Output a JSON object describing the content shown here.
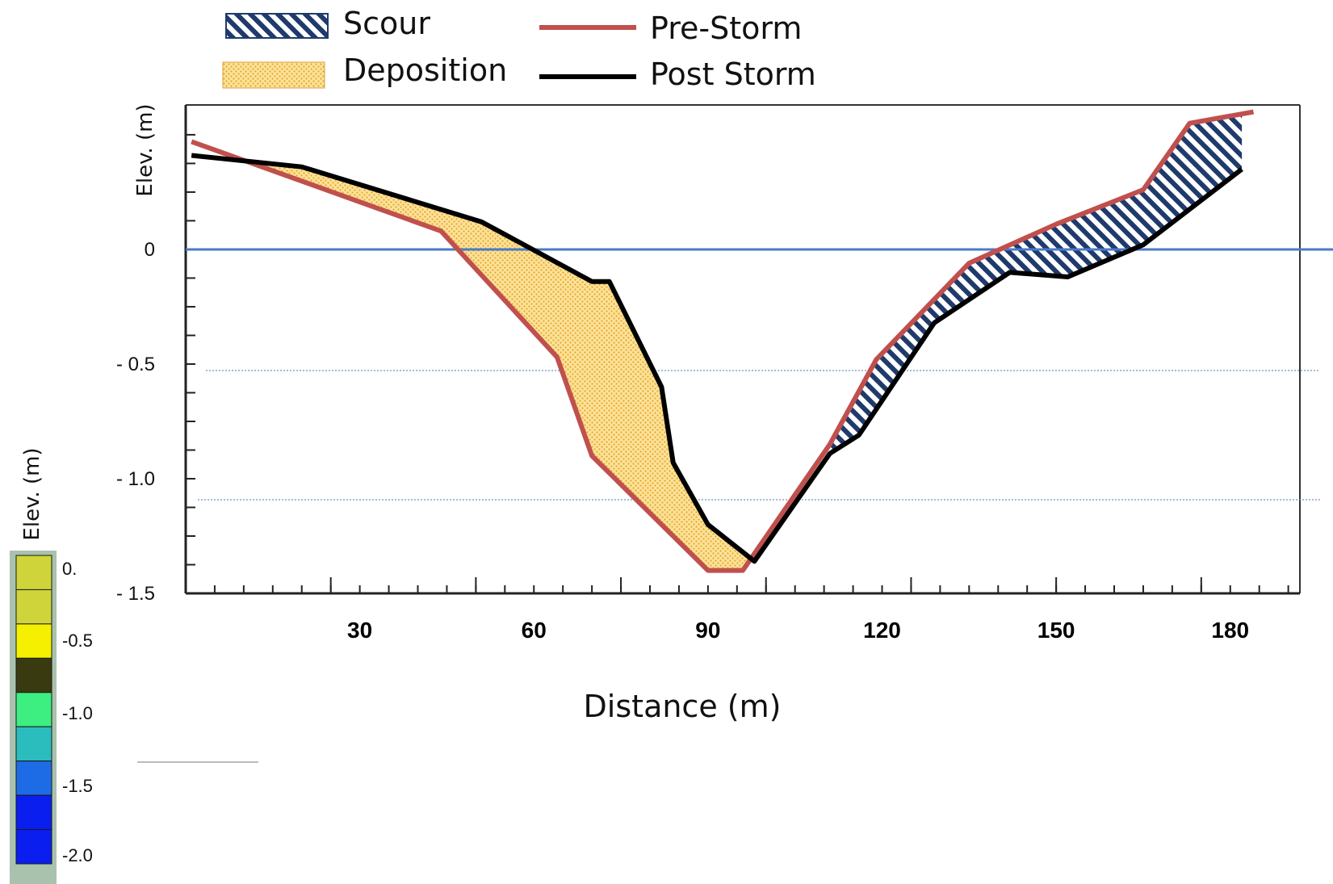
{
  "chart_data": {
    "type": "area",
    "xlabel": "Distance (m)",
    "ylabel": "Elev. (m)",
    "xticks": [
      30,
      60,
      90,
      120,
      150,
      180
    ],
    "yticks": [
      {
        "value": 0,
        "label": "0"
      },
      {
        "value": -0.5,
        "label": "- 0.5"
      },
      {
        "value": -1.0,
        "label": "- 1.0"
      },
      {
        "value": -1.5,
        "label": "- 1.5"
      }
    ],
    "xlim": [
      0,
      192
    ],
    "ylim": [
      -1.5,
      0.63
    ],
    "reference_line": 0,
    "series": [
      {
        "name": "Pre-Storm",
        "color": "#c0504d",
        "points": [
          [
            1,
            0.47
          ],
          [
            44,
            0.08
          ],
          [
            64,
            -0.47
          ],
          [
            70,
            -0.9
          ],
          [
            90,
            -1.4
          ],
          [
            96,
            -1.4
          ],
          [
            111,
            -0.85
          ],
          [
            119,
            -0.48
          ],
          [
            135,
            -0.06
          ],
          [
            150,
            0.11
          ],
          [
            165,
            0.26
          ],
          [
            173,
            0.55
          ],
          [
            184,
            0.6
          ]
        ]
      },
      {
        "name": "Post Storm",
        "color": "#000000",
        "points": [
          [
            1,
            0.41
          ],
          [
            20,
            0.36
          ],
          [
            51,
            0.12
          ],
          [
            70,
            -0.14
          ],
          [
            73,
            -0.14
          ],
          [
            82,
            -0.6
          ],
          [
            84,
            -0.93
          ],
          [
            90,
            -1.2
          ],
          [
            98,
            -1.36
          ],
          [
            111,
            -0.89
          ],
          [
            116,
            -0.81
          ],
          [
            129,
            -0.32
          ],
          [
            142,
            -0.1
          ],
          [
            152,
            -0.12
          ],
          [
            165,
            0.02
          ],
          [
            182,
            0.35
          ]
        ]
      }
    ],
    "fill_legend": [
      {
        "name": "Scour",
        "color": "#1f3a6b"
      },
      {
        "name": "Deposition",
        "color": "#f5c24a"
      }
    ],
    "colorbar": {
      "title": "Elev. (m)",
      "labels": [
        "0.",
        "-0.5",
        "-1.0",
        "-1.5",
        "-2.0"
      ],
      "colors": [
        "#cfd43a",
        "#cfd43a",
        "#f4f000",
        "#3a3a10",
        "#3dee80",
        "#2bbdbd",
        "#1e6be6",
        "#0a1ef0",
        "#0a1ef0"
      ]
    }
  }
}
